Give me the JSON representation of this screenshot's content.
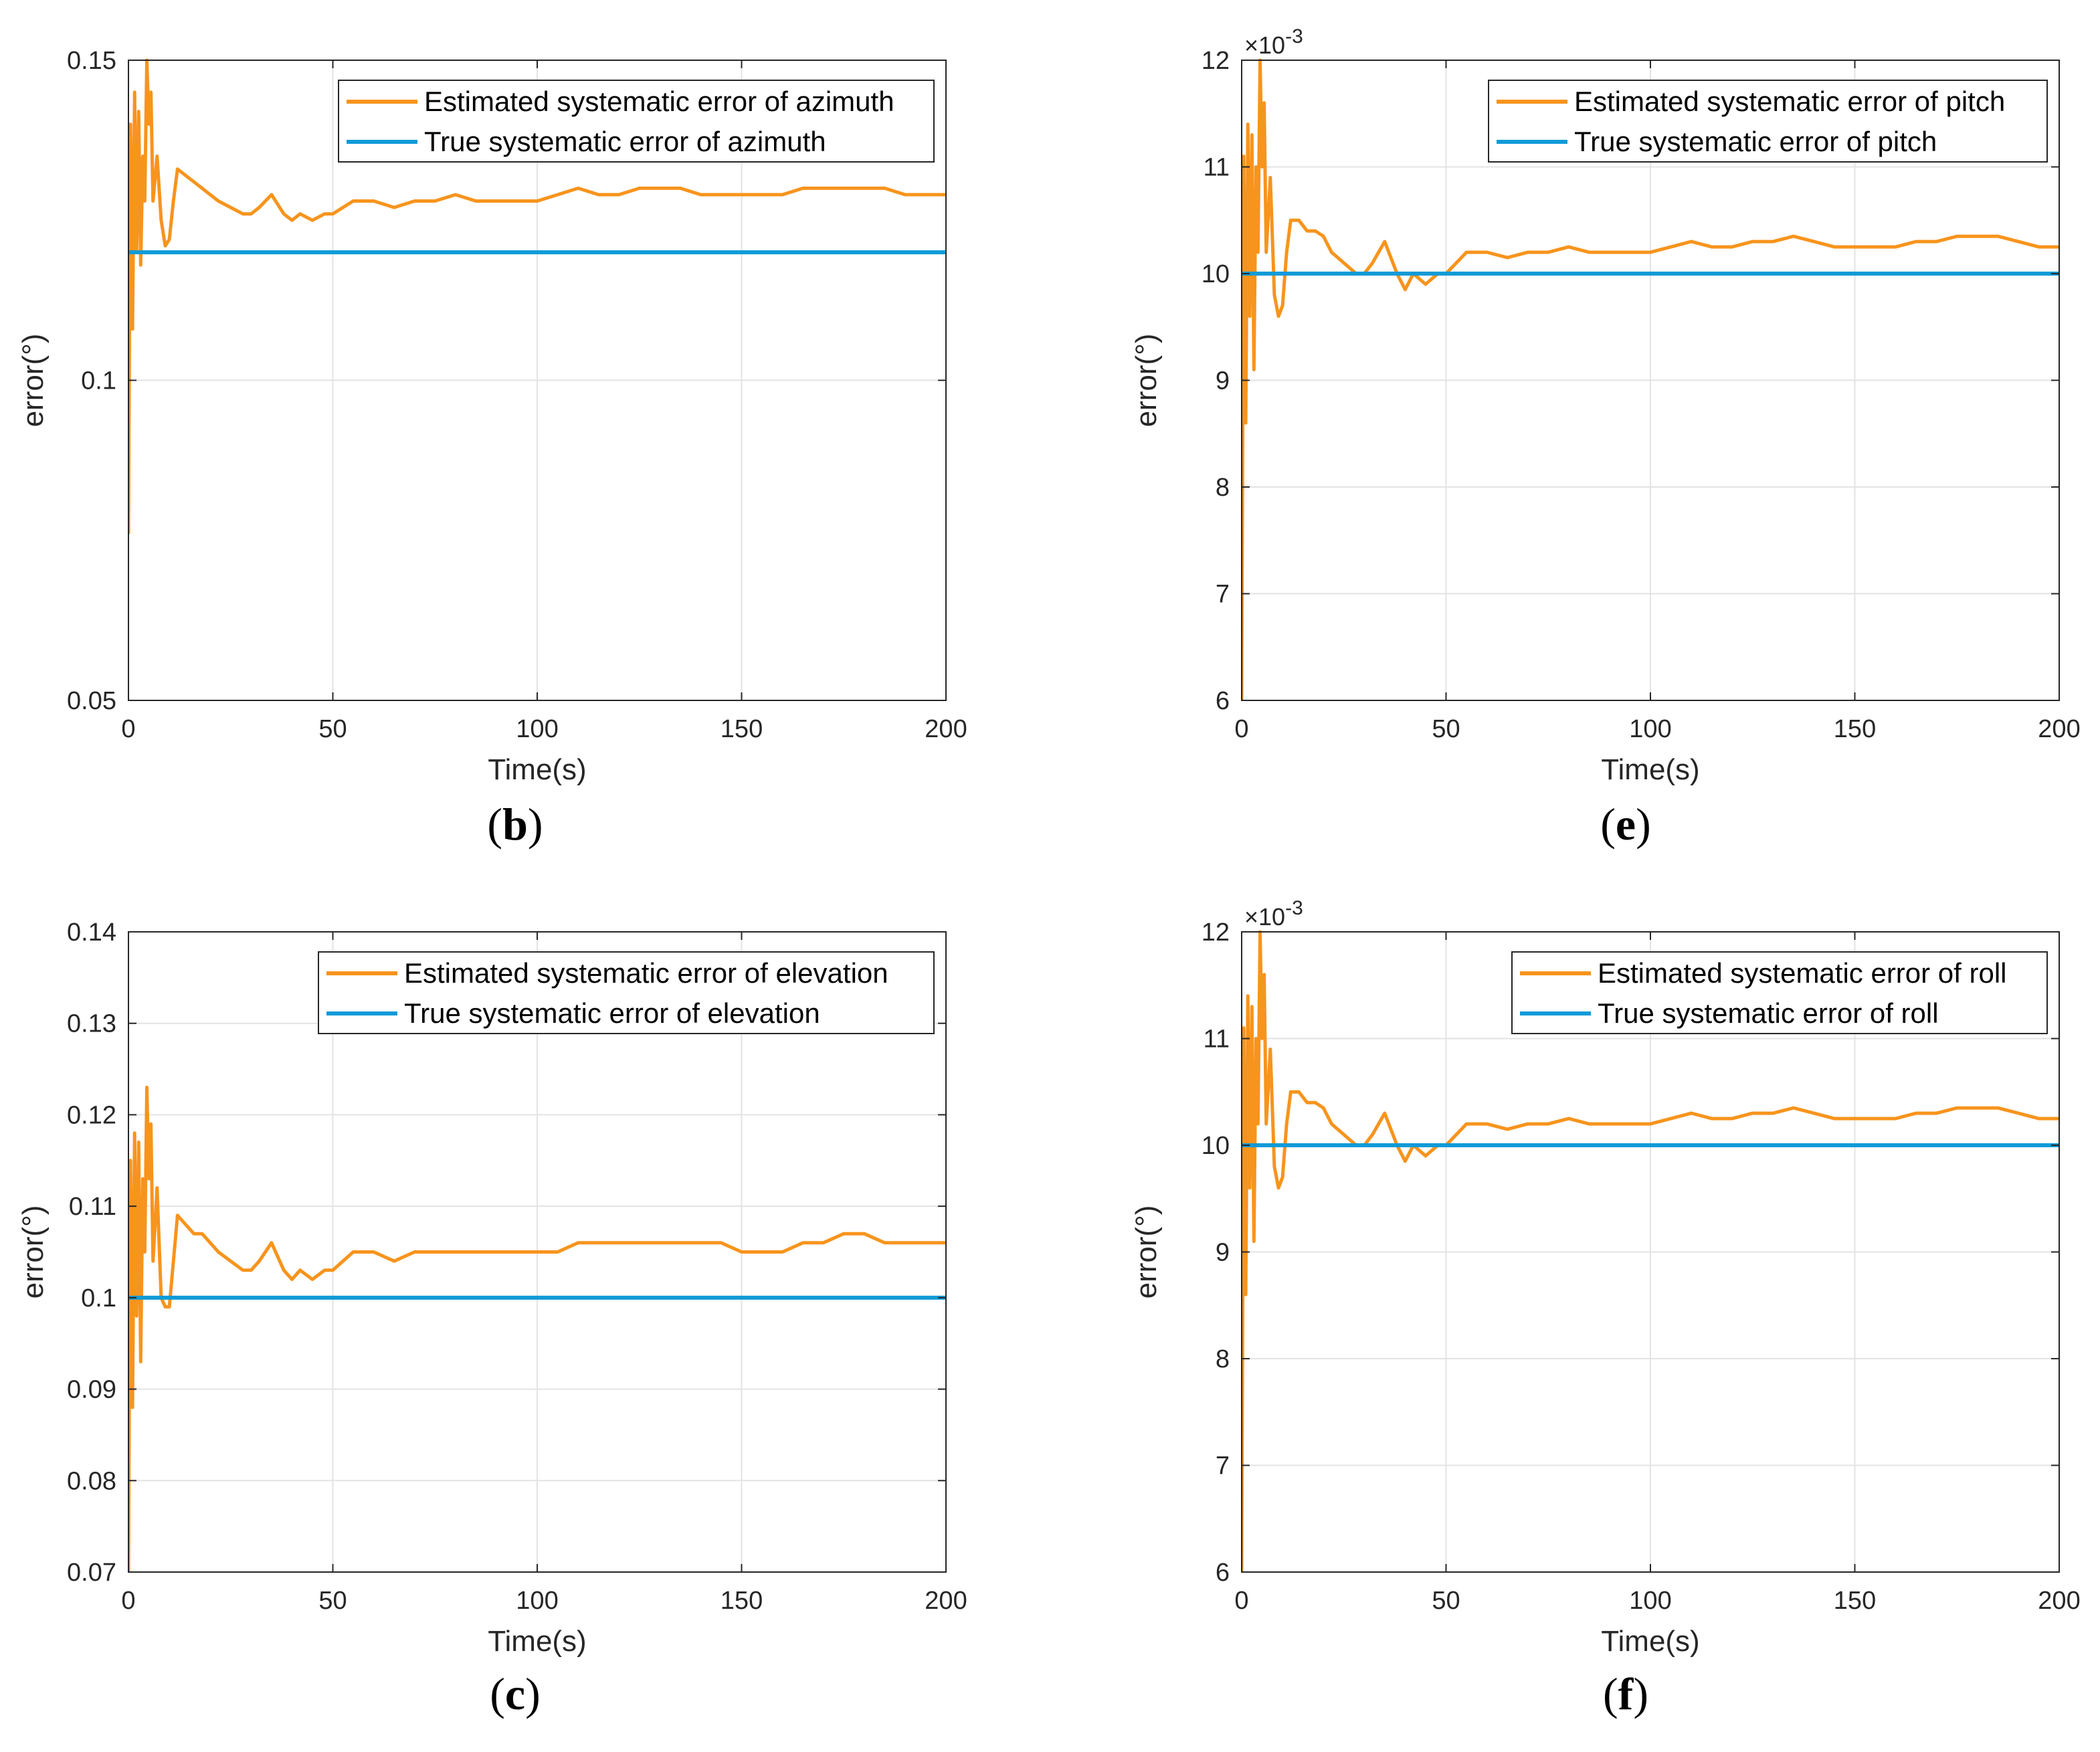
{
  "chart_data": [
    {
      "type": "line",
      "caption_letter": "b",
      "xlabel": "Time(s)",
      "ylabel": "error(°)",
      "xlim": [
        0,
        200
      ],
      "ylim": [
        0.05,
        0.15
      ],
      "xticks": [
        "0",
        "50",
        "100",
        "150",
        "200"
      ],
      "yticks": [
        "0.05",
        "0.1",
        "0.15"
      ],
      "multiplier": "",
      "series": [
        {
          "name": "Estimated systematic error of azimuth",
          "color": "#F7941D",
          "x": [
            0,
            0.5,
            1,
            1.5,
            2,
            2.5,
            3,
            3.5,
            4,
            4.5,
            5,
            5.5,
            6,
            7,
            8,
            9,
            10,
            11,
            12,
            14,
            16,
            18,
            20,
            22,
            25,
            28,
            30,
            32,
            35,
            38,
            40,
            42,
            45,
            48,
            50,
            55,
            60,
            65,
            70,
            75,
            80,
            85,
            90,
            95,
            100,
            105,
            110,
            115,
            120,
            125,
            130,
            135,
            140,
            145,
            150,
            155,
            160,
            165,
            170,
            175,
            180,
            185,
            190,
            195,
            200
          ],
          "y": [
            0.076,
            0.14,
            0.108,
            0.145,
            0.12,
            0.142,
            0.118,
            0.135,
            0.128,
            0.15,
            0.14,
            0.145,
            0.128,
            0.135,
            0.125,
            0.121,
            0.122,
            0.128,
            0.133,
            0.132,
            0.131,
            0.13,
            0.129,
            0.128,
            0.127,
            0.126,
            0.126,
            0.127,
            0.129,
            0.126,
            0.125,
            0.126,
            0.125,
            0.126,
            0.126,
            0.128,
            0.128,
            0.127,
            0.128,
            0.128,
            0.129,
            0.128,
            0.128,
            0.128,
            0.128,
            0.129,
            0.13,
            0.129,
            0.129,
            0.13,
            0.13,
            0.13,
            0.129,
            0.129,
            0.129,
            0.129,
            0.129,
            0.13,
            0.13,
            0.13,
            0.13,
            0.13,
            0.129,
            0.129,
            0.129
          ]
        },
        {
          "name": "True systematic error of azimuth",
          "color": "#0F9BD7",
          "x": [
            0,
            200
          ],
          "y": [
            0.12,
            0.12
          ]
        }
      ]
    },
    {
      "type": "line",
      "caption_letter": "e",
      "xlabel": "Time(s)",
      "ylabel": "error(°)",
      "xlim": [
        0,
        200
      ],
      "ylim": [
        6,
        12
      ],
      "xticks": [
        "0",
        "50",
        "100",
        "150",
        "200"
      ],
      "yticks": [
        "6",
        "7",
        "8",
        "9",
        "10",
        "11",
        "12"
      ],
      "multiplier": "×10",
      "multiplier_exp": "-3",
      "series": [
        {
          "name": "Estimated systematic error of pitch",
          "color": "#F7941D",
          "x": [
            0,
            0.5,
            1,
            1.5,
            2,
            2.5,
            3,
            3.5,
            4,
            4.5,
            5,
            5.5,
            6,
            7,
            8,
            9,
            10,
            11,
            12,
            14,
            16,
            18,
            20,
            22,
            25,
            28,
            30,
            32,
            35,
            38,
            40,
            42,
            45,
            48,
            50,
            55,
            60,
            65,
            70,
            75,
            80,
            85,
            90,
            95,
            100,
            105,
            110,
            115,
            120,
            125,
            130,
            135,
            140,
            145,
            150,
            155,
            160,
            165,
            170,
            175,
            180,
            185,
            190,
            195,
            200
          ],
          "y": [
            6.0,
            11.1,
            8.6,
            11.4,
            9.6,
            11.3,
            9.1,
            11.0,
            10.2,
            12.0,
            11.0,
            11.6,
            10.2,
            10.9,
            9.8,
            9.6,
            9.7,
            10.2,
            10.5,
            10.5,
            10.4,
            10.4,
            10.35,
            10.2,
            10.1,
            10.0,
            10.0,
            10.1,
            10.3,
            10.0,
            9.85,
            10.0,
            9.9,
            10.0,
            10.0,
            10.2,
            10.2,
            10.15,
            10.2,
            10.2,
            10.25,
            10.2,
            10.2,
            10.2,
            10.2,
            10.25,
            10.3,
            10.25,
            10.25,
            10.3,
            10.3,
            10.35,
            10.3,
            10.25,
            10.25,
            10.25,
            10.25,
            10.3,
            10.3,
            10.35,
            10.35,
            10.35,
            10.3,
            10.25,
            10.25
          ]
        },
        {
          "name": "True systematic error of pitch",
          "color": "#0F9BD7",
          "x": [
            0,
            200
          ],
          "y": [
            10,
            10
          ]
        }
      ]
    },
    {
      "type": "line",
      "caption_letter": "c",
      "xlabel": "Time(s)",
      "ylabel": "error(°)",
      "xlim": [
        0,
        200
      ],
      "ylim": [
        0.07,
        0.14
      ],
      "xticks": [
        "0",
        "50",
        "100",
        "150",
        "200"
      ],
      "yticks": [
        "0.07",
        "0.08",
        "0.09",
        "0.1",
        "0.11",
        "0.12",
        "0.13",
        "0.14"
      ],
      "multiplier": "",
      "series": [
        {
          "name": "Estimated systematic error of elevation",
          "color": "#F7941D",
          "x": [
            0,
            0.5,
            1,
            1.5,
            2,
            2.5,
            3,
            3.5,
            4,
            4.5,
            5,
            5.5,
            6,
            7,
            8,
            9,
            10,
            11,
            12,
            14,
            16,
            18,
            20,
            22,
            25,
            28,
            30,
            32,
            35,
            38,
            40,
            42,
            45,
            48,
            50,
            55,
            60,
            65,
            70,
            75,
            80,
            85,
            90,
            95,
            100,
            105,
            110,
            115,
            120,
            125,
            130,
            135,
            140,
            145,
            150,
            155,
            160,
            165,
            170,
            175,
            180,
            185,
            190,
            195,
            200
          ],
          "y": [
            0.07,
            0.115,
            0.088,
            0.118,
            0.098,
            0.117,
            0.093,
            0.113,
            0.105,
            0.123,
            0.113,
            0.119,
            0.104,
            0.112,
            0.1,
            0.099,
            0.099,
            0.104,
            0.109,
            0.108,
            0.107,
            0.107,
            0.106,
            0.105,
            0.104,
            0.103,
            0.103,
            0.104,
            0.106,
            0.103,
            0.102,
            0.103,
            0.102,
            0.103,
            0.103,
            0.105,
            0.105,
            0.104,
            0.105,
            0.105,
            0.105,
            0.105,
            0.105,
            0.105,
            0.105,
            0.105,
            0.106,
            0.106,
            0.106,
            0.106,
            0.106,
            0.106,
            0.106,
            0.106,
            0.105,
            0.105,
            0.105,
            0.106,
            0.106,
            0.107,
            0.107,
            0.106,
            0.106,
            0.106,
            0.106
          ]
        },
        {
          "name": "True systematic error of elevation",
          "color": "#0F9BD7",
          "x": [
            0,
            200
          ],
          "y": [
            0.1,
            0.1
          ]
        }
      ]
    },
    {
      "type": "line",
      "caption_letter": "f",
      "xlabel": "Time(s)",
      "ylabel": "error(°)",
      "xlim": [
        0,
        200
      ],
      "ylim": [
        6,
        12
      ],
      "xticks": [
        "0",
        "50",
        "100",
        "150",
        "200"
      ],
      "yticks": [
        "6",
        "7",
        "8",
        "9",
        "10",
        "11",
        "12"
      ],
      "multiplier": "×10",
      "multiplier_exp": "-3",
      "series": [
        {
          "name": "Estimated systematic error of roll",
          "color": "#F7941D",
          "x": [
            0,
            0.5,
            1,
            1.5,
            2,
            2.5,
            3,
            3.5,
            4,
            4.5,
            5,
            5.5,
            6,
            7,
            8,
            9,
            10,
            11,
            12,
            14,
            16,
            18,
            20,
            22,
            25,
            28,
            30,
            32,
            35,
            38,
            40,
            42,
            45,
            48,
            50,
            55,
            60,
            65,
            70,
            75,
            80,
            85,
            90,
            95,
            100,
            105,
            110,
            115,
            120,
            125,
            130,
            135,
            140,
            145,
            150,
            155,
            160,
            165,
            170,
            175,
            180,
            185,
            190,
            195,
            200
          ],
          "y": [
            6.0,
            11.1,
            8.6,
            11.4,
            9.6,
            11.3,
            9.1,
            11.0,
            10.2,
            12.0,
            11.0,
            11.6,
            10.2,
            10.9,
            9.8,
            9.6,
            9.7,
            10.2,
            10.5,
            10.5,
            10.4,
            10.4,
            10.35,
            10.2,
            10.1,
            10.0,
            10.0,
            10.1,
            10.3,
            10.0,
            9.85,
            10.0,
            9.9,
            10.0,
            10.0,
            10.2,
            10.2,
            10.15,
            10.2,
            10.2,
            10.25,
            10.2,
            10.2,
            10.2,
            10.2,
            10.25,
            10.3,
            10.25,
            10.25,
            10.3,
            10.3,
            10.35,
            10.3,
            10.25,
            10.25,
            10.25,
            10.25,
            10.3,
            10.3,
            10.35,
            10.35,
            10.35,
            10.3,
            10.25,
            10.25
          ]
        },
        {
          "name": "True systematic error of roll",
          "color": "#0F9BD7",
          "x": [
            0,
            200
          ],
          "y": [
            10,
            10
          ]
        }
      ]
    }
  ],
  "style": {
    "axis_color": "#262626",
    "grid_color": "#E3E3E3",
    "legend_border": "#262626"
  }
}
